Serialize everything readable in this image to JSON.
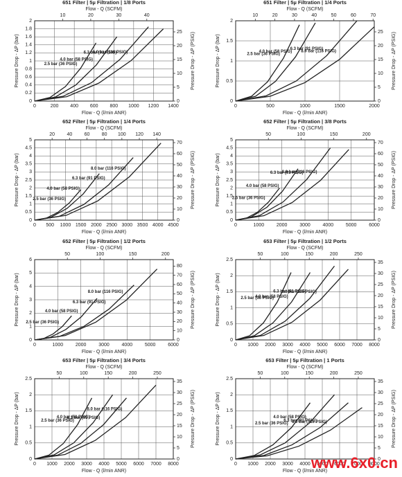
{
  "chart_data": [
    {
      "type": "line",
      "title": "651 Filter | 5µ Filtration | 1/8 Ports",
      "x_label": "Flow - Q (l/min ANR)",
      "x2_label": "Flow - Q (SCFM)",
      "y_label": "Pressure Drop - ΔP (bar)",
      "y2_label": "Pressure Drop - ΔP (PSIG)",
      "xlim": [
        0,
        1400
      ],
      "xticks": [
        0,
        200,
        400,
        600,
        800,
        1000,
        1200,
        1400
      ],
      "x2lim": [
        0,
        49.44
      ],
      "x2ticks": [
        10,
        20,
        30,
        40
      ],
      "ylim": [
        0,
        2
      ],
      "yticks": [
        0,
        0.2,
        0.4,
        0.6,
        0.8,
        1,
        1.2,
        1.4,
        1.6,
        1.8,
        2
      ],
      "y2lim": [
        0,
        29.0
      ],
      "y2ticks": [
        0,
        5,
        10,
        15,
        20,
        25
      ],
      "grid": true,
      "series": [
        {
          "name": "2.5 bar (36 PSIG)",
          "color": "#222222",
          "x": [
            0,
            155,
            310,
            465,
            620
          ],
          "values": [
            0,
            0.09,
            0.36,
            0.82,
            1.45
          ]
        },
        {
          "name": "4.0 bar (58 PSIG)",
          "color": "#222222",
          "x": [
            0,
            208,
            415,
            623,
            830
          ],
          "values": [
            0,
            0.1,
            0.4,
            0.9,
            1.6
          ]
        },
        {
          "name": "6.3 bar (91 PSIG)",
          "color": "#222222",
          "x": [
            0,
            288,
            575,
            863,
            1150
          ],
          "values": [
            0,
            0.12,
            0.46,
            1.04,
            1.85
          ]
        },
        {
          "name": "8.0 bar (116 PSIG)",
          "color": "#222222",
          "x": [
            0,
            325,
            650,
            975,
            1300
          ],
          "values": [
            0,
            0.11,
            0.45,
            1.01,
            1.8
          ]
        }
      ]
    },
    {
      "type": "line",
      "title": "651 Filter | 5µ Filtration | 1/4 Ports",
      "x_label": "Flow - Q (l/min ANR)",
      "x2_label": "Flow - Q (SCFM)",
      "y_label": "Pressure Drop - ΔP (bar)",
      "y2_label": "Pressure Drop - ΔP (PSIG)",
      "xlim": [
        0,
        2000
      ],
      "xticks": [
        0,
        500,
        1000,
        1500,
        2000
      ],
      "x2lim": [
        0,
        70.63
      ],
      "x2ticks": [
        10,
        20,
        30,
        40,
        50,
        60,
        70
      ],
      "ylim": [
        0,
        2
      ],
      "yticks": [
        0,
        0.5,
        1,
        1.5,
        2
      ],
      "y2lim": [
        0,
        29.0
      ],
      "y2ticks": [
        0,
        5,
        10,
        15,
        20,
        25
      ],
      "grid": true,
      "series": [
        {
          "name": "2.5 bar (36 PSIG)",
          "color": "#222222",
          "x": [
            0,
            230,
            460,
            690,
            920
          ],
          "values": [
            0,
            0.12,
            0.48,
            1.07,
            1.9
          ]
        },
        {
          "name": "4.0 bar (58 PSIG)",
          "color": "#222222",
          "x": [
            0,
            288,
            575,
            863,
            1150
          ],
          "values": [
            0,
            0.12,
            0.49,
            1.1,
            1.95
          ]
        },
        {
          "name": "6.3 bar (91 PSIG)",
          "color": "#222222",
          "x": [
            0,
            438,
            875,
            1313,
            1750
          ],
          "values": [
            0,
            0.13,
            0.5,
            1.13,
            2.0
          ]
        },
        {
          "name": "8.0 bar (116 PSIG)",
          "color": "#222222",
          "x": [
            0,
            500,
            1000,
            1500,
            2000
          ],
          "values": [
            0,
            0.12,
            0.46,
            1.04,
            1.85
          ]
        }
      ]
    },
    {
      "type": "line",
      "title": "652 Filter | 5µ Filtration | 1/4 Ports",
      "x_label": "Flow - Q (l/min ANR)",
      "x2_label": "Flow - Q (SCFM)",
      "y_label": "Pressure Drop - ΔP (bar)",
      "y2_label": "Pressure Drop - ΔP (PSIG)",
      "xlim": [
        0,
        4500
      ],
      "xticks": [
        0,
        500,
        1000,
        1500,
        2000,
        2500,
        3000,
        3500,
        4000,
        4500
      ],
      "x2lim": [
        0,
        158.9
      ],
      "x2ticks": [
        20,
        40,
        60,
        80,
        100,
        120,
        140
      ],
      "ylim": [
        0,
        5
      ],
      "yticks": [
        0,
        0.5,
        1,
        1.5,
        2,
        2.5,
        3,
        3.5,
        4,
        4.5,
        5
      ],
      "y2lim": [
        0,
        72.5
      ],
      "y2ticks": [
        0,
        10,
        20,
        30,
        40,
        50,
        60,
        70
      ],
      "grid": true,
      "series": [
        {
          "name": "2.5 bar (36 PSIG)",
          "color": "#222222",
          "x": [
            0,
            375,
            750,
            1125,
            1500
          ],
          "values": [
            0,
            0.12,
            0.48,
            1.07,
            1.9
          ]
        },
        {
          "name": "4.0 bar (58 PSIG)",
          "color": "#222222",
          "x": [
            0,
            525,
            1050,
            1575,
            2100
          ],
          "values": [
            0,
            0.18,
            0.73,
            1.63,
            2.9
          ]
        },
        {
          "name": "6.3 bar (91 PSIG)",
          "color": "#222222",
          "x": [
            0,
            800,
            1600,
            2400,
            3200
          ],
          "values": [
            0,
            0.24,
            0.98,
            2.19,
            3.9
          ]
        },
        {
          "name": "8.0 bar (116 PSIG)",
          "color": "#222222",
          "x": [
            0,
            1025,
            2050,
            3075,
            4100
          ],
          "values": [
            0,
            0.3,
            1.2,
            2.7,
            4.8
          ]
        }
      ]
    },
    {
      "type": "line",
      "title": "652 Filter | 5µ Filtration | 3/8 Ports",
      "x_label": "Flow - Q (l/min ANR)",
      "x2_label": "Flow - Q (SCFM)",
      "y_label": "Pressure Drop - ΔP (bar)",
      "y2_label": "Pressure Drop - ΔP (PSIG)",
      "xlim": [
        0,
        6000
      ],
      "xticks": [
        0,
        1000,
        2000,
        3000,
        4000,
        5000,
        6000
      ],
      "x2lim": [
        0,
        211.9
      ],
      "x2ticks": [
        50,
        100,
        150,
        200
      ],
      "ylim": [
        0,
        5
      ],
      "yticks": [
        0,
        0.5,
        1,
        1.5,
        2,
        2.5,
        3,
        3.5,
        4,
        4.5,
        5
      ],
      "y2lim": [
        0,
        72.5
      ],
      "y2ticks": [
        0,
        10,
        20,
        30,
        40,
        50,
        60,
        70
      ],
      "grid": true,
      "series": [
        {
          "name": "2.5 bar (36 PSIG)",
          "color": "#222222",
          "x": [
            0,
            475,
            950,
            1425,
            1900
          ],
          "values": [
            0,
            0.13,
            0.5,
            1.13,
            2.0
          ]
        },
        {
          "name": "4.0 bar (58 PSIG)",
          "color": "#222222",
          "x": [
            0,
            675,
            1350,
            2025,
            2700
          ],
          "values": [
            0,
            0.2,
            0.8,
            1.8,
            3.2
          ]
        },
        {
          "name": "6.3 bar (91 PSIG)",
          "color": "#222222",
          "x": [
            0,
            1025,
            2050,
            3075,
            4100
          ],
          "values": [
            0,
            0.28,
            1.13,
            2.53,
            4.5
          ]
        },
        {
          "name": "8.0 bar (116 PSIG)",
          "color": "#222222",
          "x": [
            0,
            1225,
            2450,
            3675,
            4900
          ],
          "values": [
            0,
            0.28,
            1.1,
            2.48,
            4.4
          ]
        }
      ]
    },
    {
      "type": "line",
      "title": "652 Filter | 5µ Filtration | 1/2 Ports",
      "x_label": "Flow - Q (l/min ANR)",
      "x2_label": "Flow - Q (SCFM)",
      "y_label": "Pressure Drop - ΔP (bar)",
      "y2_label": "Pressure Drop - ΔP (PSIG)",
      "xlim": [
        0,
        6000
      ],
      "xticks": [
        0,
        1000,
        2000,
        3000,
        4000,
        5000,
        6000
      ],
      "x2lim": [
        0,
        211.9
      ],
      "x2ticks": [
        50,
        100,
        150,
        200
      ],
      "ylim": [
        0,
        6
      ],
      "yticks": [
        0,
        1,
        2,
        3,
        4,
        5,
        6
      ],
      "y2lim": [
        0,
        87.0
      ],
      "y2ticks": [
        0,
        10,
        20,
        30,
        40,
        50,
        60,
        70,
        80
      ],
      "grid": true,
      "series": [
        {
          "name": "2.5 bar (36 PSIG)",
          "color": "#222222",
          "x": [
            0,
            400,
            800,
            1200,
            1600
          ],
          "values": [
            0,
            0.11,
            0.45,
            1.01,
            1.8
          ]
        },
        {
          "name": "4.0 bar (58 PSIG)",
          "color": "#222222",
          "x": [
            0,
            675,
            1350,
            2025,
            2700
          ],
          "values": [
            0,
            0.19,
            0.78,
            1.74,
            3.1
          ]
        },
        {
          "name": "6.3 bar (91 PSIG)",
          "color": "#222222",
          "x": [
            0,
            1075,
            2150,
            3225,
            4300
          ],
          "values": [
            0,
            0.26,
            1.03,
            2.31,
            4.1
          ]
        },
        {
          "name": "8.0 bar (116 PSIG)",
          "color": "#222222",
          "x": [
            0,
            1325,
            2650,
            3975,
            5300
          ],
          "values": [
            0,
            0.33,
            1.33,
            2.98,
            5.3
          ]
        }
      ]
    },
    {
      "type": "line",
      "title": "653 Filter | 5µ Filtration | 1/2 Ports",
      "x_label": "Flow - Q (l/min ANR)",
      "x2_label": "Flow - Q (SCFM)",
      "y_label": "Pressure Drop - ΔP (bar)",
      "y2_label": "Pressure Drop - ΔP (PSIG)",
      "xlim": [
        0,
        8000
      ],
      "xticks": [
        0,
        1000,
        2000,
        3000,
        4000,
        5000,
        6000,
        7000,
        8000
      ],
      "x2lim": [
        0,
        282.5
      ],
      "x2ticks": [
        50,
        100,
        150,
        200,
        250
      ],
      "ylim": [
        0,
        2.5
      ],
      "yticks": [
        0,
        0.5,
        1,
        1.5,
        2,
        2.5
      ],
      "y2lim": [
        0,
        36.26
      ],
      "y2ticks": [
        0,
        5,
        10,
        15,
        20,
        25,
        30,
        35
      ],
      "grid": true,
      "series": [
        {
          "name": "2.5 bar (36 PSIG)",
          "color": "#222222",
          "x": [
            0,
            800,
            1600,
            2400,
            3200
          ],
          "values": [
            0,
            0.13,
            0.53,
            1.18,
            2.1
          ]
        },
        {
          "name": "4.0 bar (58 PSIG)",
          "color": "#222222",
          "x": [
            0,
            1075,
            2150,
            3225,
            4300
          ],
          "values": [
            0,
            0.13,
            0.53,
            1.18,
            2.1
          ]
        },
        {
          "name": "6.3 bar (91 PSIG)",
          "color": "#222222",
          "x": [
            0,
            1425,
            2850,
            4275,
            5700
          ],
          "values": [
            0,
            0.14,
            0.58,
            1.29,
            2.3
          ]
        },
        {
          "name": "8.0 bar (116 PSIG)",
          "color": "#222222",
          "x": [
            0,
            1625,
            3250,
            4875,
            6500
          ],
          "values": [
            0,
            0.14,
            0.55,
            1.24,
            2.2
          ]
        }
      ]
    },
    {
      "type": "line",
      "title": "653 Filter | 5µ Filtration | 3/4 Ports",
      "x_label": "Flow - Q (l/min ANR)",
      "x2_label": "Flow - Q (SCFM)",
      "y_label": "Pressure Drop - ΔP (bar)",
      "y2_label": "Pressure Drop - ΔP (PSIG)",
      "xlim": [
        0,
        8000
      ],
      "xticks": [
        0,
        1000,
        2000,
        3000,
        4000,
        5000,
        6000,
        7000,
        8000
      ],
      "x2lim": [
        0,
        282.5
      ],
      "x2ticks": [
        50,
        100,
        150,
        200,
        250
      ],
      "ylim": [
        0,
        2.5
      ],
      "yticks": [
        0,
        0.5,
        1,
        1.5,
        2,
        2.5
      ],
      "y2lim": [
        0,
        36.26
      ],
      "y2ticks": [
        0,
        5,
        10,
        15,
        20,
        25,
        30,
        35
      ],
      "grid": true,
      "series": [
        {
          "name": "2.5 bar (36 PSIG)",
          "color": "#222222",
          "x": [
            0,
            825,
            1650,
            2475,
            3300
          ],
          "values": [
            0,
            0.12,
            0.48,
            1.07,
            1.9
          ]
        },
        {
          "name": "4.0 bar (58 PSIG)",
          "color": "#222222",
          "x": [
            0,
            1125,
            2250,
            3375,
            4500
          ],
          "values": [
            0,
            0.13,
            0.5,
            1.13,
            2.0
          ]
        },
        {
          "name": "6.3 bar (91 PSIG)",
          "color": "#222222",
          "x": [
            0,
            1325,
            2650,
            3975,
            5300
          ],
          "values": [
            0,
            0.12,
            0.48,
            1.07,
            1.9
          ]
        },
        {
          "name": "8.0 bar (116 PSIG)",
          "color": "#222222",
          "x": [
            0,
            1750,
            3500,
            5250,
            7000
          ],
          "values": [
            0,
            0.14,
            0.58,
            1.29,
            2.3
          ]
        }
      ]
    },
    {
      "type": "line",
      "title": "653 Filter | 5µ Filtration | 1 Ports",
      "x_label": "Flow - Q (l/min ANR)",
      "x2_label": "Flow - Q (SCFM)",
      "y_label": "Pressure Drop - ΔP (bar)",
      "y2_label": "Pressure Drop - ΔP (PSIG)",
      "xlim": [
        0,
        8000
      ],
      "xticks": [
        0,
        1000,
        2000,
        3000,
        4000,
        5000,
        6000,
        7000,
        8000
      ],
      "x2lim": [
        0,
        282.5
      ],
      "x2ticks": [
        50,
        100,
        150,
        200,
        250
      ],
      "ylim": [
        0,
        2.5
      ],
      "yticks": [
        0,
        0.5,
        1,
        1.5,
        2,
        2.5
      ],
      "y2lim": [
        0,
        36.26
      ],
      "y2ticks": [
        0,
        5,
        10,
        15,
        20,
        25,
        30,
        35
      ],
      "grid": true,
      "series": [
        {
          "name": "2.5 bar (36 PSIG)",
          "color": "#222222",
          "x": [
            0,
            1075,
            2150,
            3225,
            4300
          ],
          "values": [
            0,
            0.11,
            0.44,
            0.98,
            1.75
          ]
        },
        {
          "name": "4.0 bar (58 PSIG)",
          "color": "#222222",
          "x": [
            0,
            1425,
            2850,
            4275,
            5700
          ],
          "values": [
            0,
            0.13,
            0.5,
            1.13,
            2.0
          ]
        },
        {
          "name": "6.3 bar (91 PSIG)",
          "color": "#222222",
          "x": [
            0,
            1625,
            3250,
            4875,
            6500
          ],
          "values": [
            0,
            0.11,
            0.44,
            0.98,
            1.75
          ]
        },
        {
          "name": "8.0 bar (116 PSIG)",
          "color": "#222222",
          "x": [
            0,
            1825,
            3650,
            5475,
            7300
          ],
          "values": [
            0,
            0.1,
            0.4,
            0.9,
            1.6
          ]
        }
      ]
    }
  ],
  "watermark": "www.6x0.cn"
}
